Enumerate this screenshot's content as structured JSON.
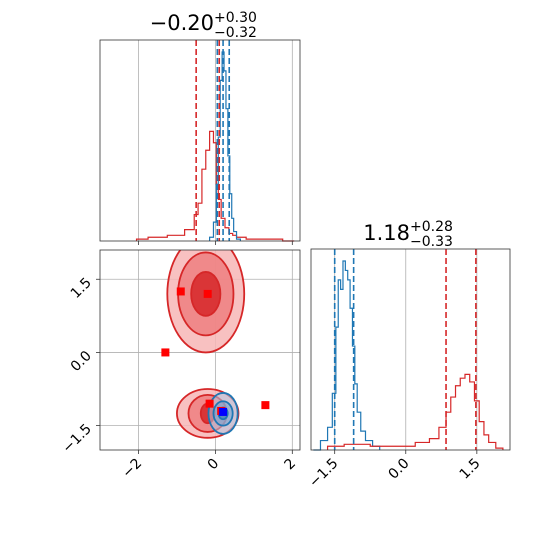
{
  "colors": {
    "red": "#d62728",
    "blue": "#1f77b4",
    "marker": "#ff0000",
    "marker2": "#0000ff"
  },
  "chart_data": [
    {
      "name": "hist-param1",
      "type": "histogram",
      "title_main": "−0.20",
      "title_sup": "+0.30",
      "title_sub": "−0.32",
      "xlim": [
        -3,
        2.2
      ],
      "grid": true,
      "series": [
        {
          "name": "",
          "color": "red",
          "x": [
            -2.0,
            -1.5,
            -1.0,
            -0.6,
            -0.5,
            -0.4,
            -0.3,
            -0.2,
            -0.1,
            0.0,
            0.05,
            0.1,
            0.2,
            0.3,
            0.4,
            0.5,
            0.6,
            1.0,
            1.5,
            2.0
          ],
          "y": [
            0.01,
            0.02,
            0.03,
            0.06,
            0.14,
            0.2,
            0.38,
            0.48,
            0.58,
            0.52,
            0.3,
            0.22,
            0.12,
            0.07,
            0.04,
            0.03,
            0.02,
            0.01,
            0.01,
            0.0
          ]
        },
        {
          "name": "",
          "color": "blue",
          "x": [
            -0.1,
            0.0,
            0.05,
            0.1,
            0.15,
            0.2,
            0.25,
            0.3,
            0.35,
            0.4,
            0.45,
            0.5,
            0.6
          ],
          "y": [
            0.02,
            0.1,
            0.3,
            0.55,
            0.85,
            1.0,
            0.9,
            0.7,
            0.45,
            0.25,
            0.12,
            0.05,
            0.01
          ]
        }
      ],
      "vlines": [
        {
          "x": -0.5,
          "color": "red"
        },
        {
          "x": 0.1,
          "color": "red"
        },
        {
          "x": 0.05,
          "color": "blue"
        },
        {
          "x": 0.2,
          "color": "blue"
        },
        {
          "x": 0.36,
          "color": "blue"
        }
      ]
    },
    {
      "name": "hist-param2",
      "type": "histogram",
      "title_main": "1.18",
      "title_sup": "+0.28",
      "title_sub": "−0.33",
      "xlim": [
        -2.0,
        2.2
      ],
      "xticks": [
        "−1.5",
        "0.0",
        "1.5"
      ],
      "xtick_values": [
        -1.5,
        0.0,
        1.5
      ],
      "grid": true,
      "series": [
        {
          "name": "",
          "color": "blue",
          "x": [
            -1.9,
            -1.7,
            -1.6,
            -1.5,
            -1.45,
            -1.4,
            -1.35,
            -1.3,
            -1.25,
            -1.2,
            -1.15,
            -1.1,
            -1.05,
            -1.0,
            -0.9,
            -0.8,
            -0.6
          ],
          "y": [
            0.0,
            0.05,
            0.12,
            0.3,
            0.65,
            0.9,
            0.85,
            1.0,
            0.95,
            0.9,
            0.75,
            0.55,
            0.35,
            0.2,
            0.1,
            0.05,
            0.02
          ]
        },
        {
          "name": "",
          "color": "red",
          "x": [
            -1.6,
            -1.0,
            -0.5,
            0.0,
            0.4,
            0.6,
            0.8,
            0.9,
            1.0,
            1.1,
            1.2,
            1.3,
            1.4,
            1.5,
            1.6,
            1.7,
            1.8,
            2.0
          ],
          "y": [
            0.02,
            0.03,
            0.02,
            0.02,
            0.04,
            0.06,
            0.12,
            0.2,
            0.28,
            0.34,
            0.38,
            0.4,
            0.36,
            0.26,
            0.15,
            0.08,
            0.04,
            0.01
          ]
        }
      ],
      "vlines": [
        {
          "x": -1.5,
          "color": "blue"
        },
        {
          "x": -1.1,
          "color": "blue"
        },
        {
          "x": 0.85,
          "color": "red"
        },
        {
          "x": 1.48,
          "color": "red"
        }
      ]
    },
    {
      "name": "contour-2d",
      "type": "contour",
      "xlim": [
        -3,
        2.2
      ],
      "ylim": [
        -2.0,
        2.1
      ],
      "xticks": [
        "−2",
        "0",
        "2"
      ],
      "xtick_values": [
        -2,
        0,
        2
      ],
      "yticks": [
        "−1.5",
        "0.0",
        "1.5"
      ],
      "ytick_values": [
        -1.5,
        0.0,
        1.5
      ],
      "grid": true,
      "regions": [
        {
          "color": "red",
          "cx": -0.25,
          "cy": 1.2,
          "rx": [
            0.38,
            0.72,
            1.0
          ],
          "ry": [
            0.45,
            0.85,
            1.2
          ]
        },
        {
          "color": "red",
          "cx": -0.2,
          "cy": -1.25,
          "rx": [
            0.18,
            0.5,
            0.8
          ],
          "ry": [
            0.2,
            0.38,
            0.5
          ]
        },
        {
          "color": "blue",
          "cx": 0.2,
          "cy": -1.25,
          "rx": [
            0.12,
            0.25,
            0.38
          ],
          "ry": [
            0.12,
            0.25,
            0.42
          ]
        }
      ],
      "markers": [
        {
          "x": -0.9,
          "y": 1.25,
          "color": "marker"
        },
        {
          "x": -0.2,
          "y": 1.2,
          "color": "marker"
        },
        {
          "x": -1.3,
          "y": 0.0,
          "color": "marker"
        },
        {
          "x": -0.15,
          "y": -1.05,
          "color": "marker"
        },
        {
          "x": 0.15,
          "y": -1.2,
          "color": "marker"
        },
        {
          "x": 1.3,
          "y": -1.08,
          "color": "marker"
        },
        {
          "x": 0.2,
          "y": -1.22,
          "color": "marker2"
        }
      ]
    }
  ]
}
